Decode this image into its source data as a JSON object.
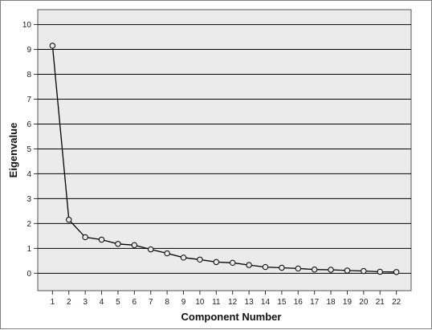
{
  "chart_data": {
    "type": "line",
    "title": "",
    "xlabel": "Component Number",
    "ylabel": "Eigenvalue",
    "x": [
      1,
      2,
      3,
      4,
      5,
      6,
      7,
      8,
      9,
      10,
      11,
      12,
      13,
      14,
      15,
      16,
      17,
      18,
      19,
      20,
      21,
      22
    ],
    "series": [
      {
        "values": [
          9.15,
          2.15,
          1.45,
          1.35,
          1.18,
          1.13,
          0.96,
          0.8,
          0.63,
          0.55,
          0.45,
          0.42,
          0.33,
          0.25,
          0.22,
          0.19,
          0.15,
          0.14,
          0.11,
          0.09,
          0.06,
          0.05
        ]
      }
    ],
    "xlim": [
      0.1,
      22.9
    ],
    "ylim": [
      -0.7,
      10.6
    ],
    "y_ticks": [
      0,
      1,
      2,
      3,
      4,
      5,
      6,
      7,
      8,
      9,
      10
    ],
    "grid": "horizontal",
    "colors": {
      "plot_background": "#ebebeb",
      "gridline": "#000000",
      "line": "#000000",
      "marker_fill": "#ebebeb"
    }
  }
}
